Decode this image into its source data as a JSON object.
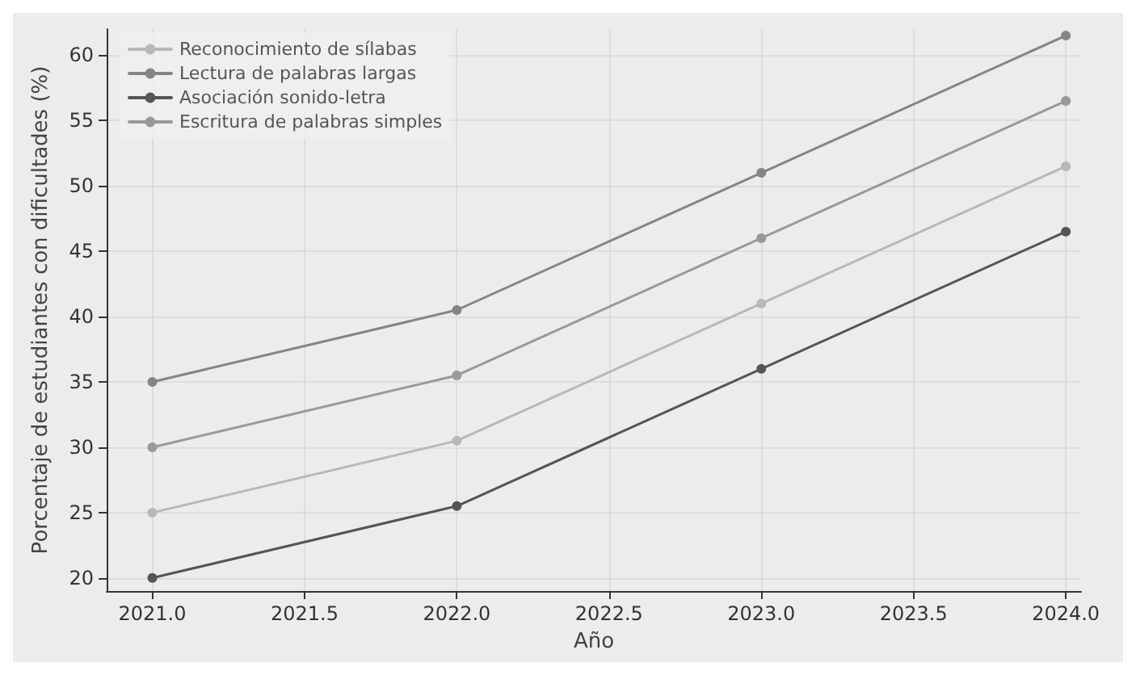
{
  "chart_data": {
    "type": "line",
    "xlabel": "Año",
    "ylabel": "Porcentaje de estudiantes con dificultades (%)",
    "x": [
      2021,
      2022,
      2023,
      2024
    ],
    "series": [
      {
        "name": "Reconocimiento de sílabas",
        "color": "#b8b8b8",
        "values": [
          25,
          30.5,
          41,
          51.5
        ]
      },
      {
        "name": "Lectura de palabras largas",
        "color": "#858585",
        "values": [
          35,
          40.5,
          51,
          61.5
        ]
      },
      {
        "name": "Asociación sonido-letra",
        "color": "#555555",
        "values": [
          20,
          25.5,
          36,
          46.5
        ]
      },
      {
        "name": "Escritura de palabras simples",
        "color": "#999999",
        "values": [
          30,
          35.5,
          46,
          56.5
        ]
      }
    ],
    "xlim": [
      2020.85,
      2024.05
    ],
    "xticks": [
      {
        "value": 2021,
        "label": "2021.0"
      },
      {
        "value": 2021.5,
        "label": "2021.5"
      },
      {
        "value": 2022,
        "label": "2022.0"
      },
      {
        "value": 2022.5,
        "label": "2022.5"
      },
      {
        "value": 2023,
        "label": "2023.0"
      },
      {
        "value": 2023.5,
        "label": "2023.5"
      },
      {
        "value": 2024,
        "label": "2024.0"
      }
    ],
    "ylim": [
      19,
      62
    ],
    "yticks": [
      20,
      25,
      30,
      35,
      40,
      45,
      50,
      55,
      60
    ],
    "grid": true,
    "legend": "top left",
    "marker": "circle",
    "line_style": "solid"
  }
}
